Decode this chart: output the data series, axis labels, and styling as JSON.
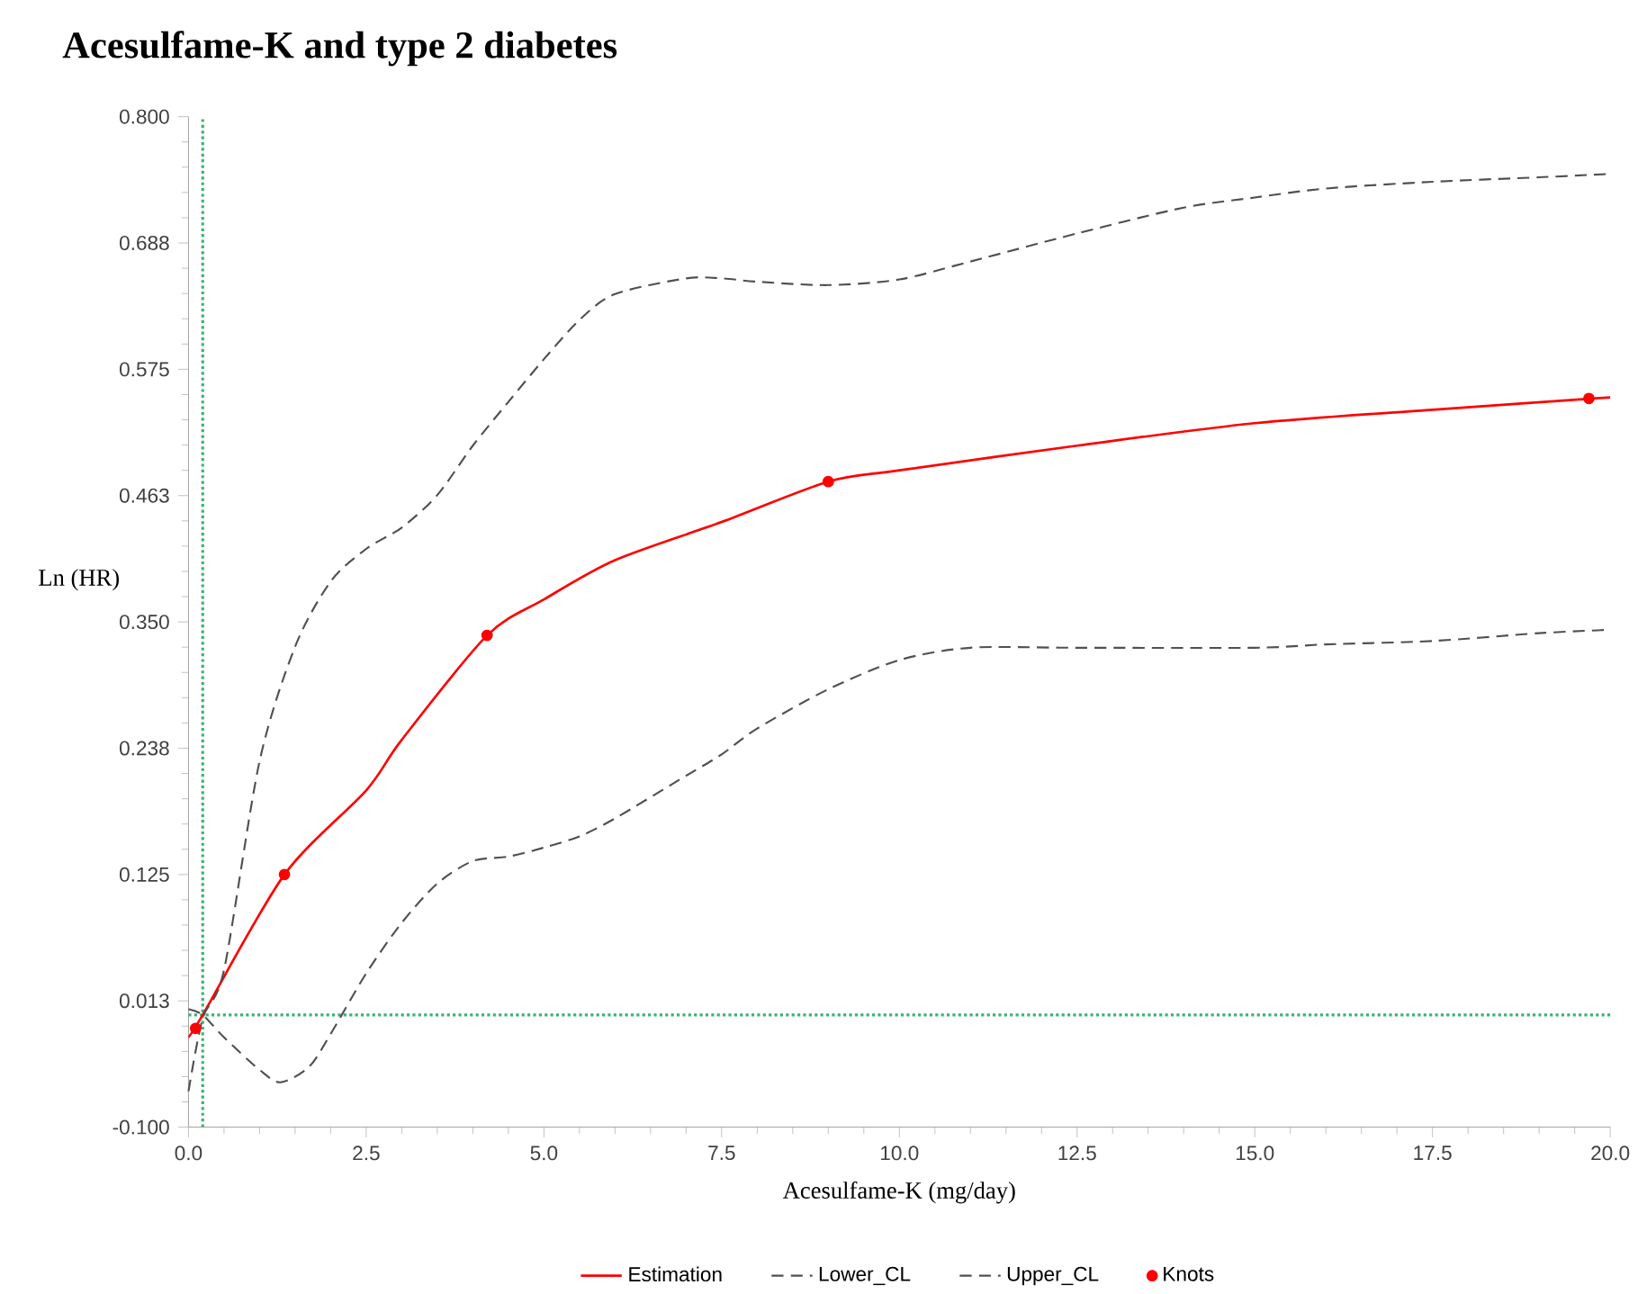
{
  "chart_data": {
    "type": "line",
    "title": "Acesulfame-K and type 2 diabetes",
    "xlabel": "Acesulfame-K (mg/day)",
    "ylabel": "Ln (HR)",
    "xlim": [
      0,
      20
    ],
    "ylim": [
      -0.1,
      0.8
    ],
    "xticks": [
      {
        "value": 0,
        "label": "0.0"
      },
      {
        "value": 2.5,
        "label": "2.5"
      },
      {
        "value": 5,
        "label": "5.0"
      },
      {
        "value": 7.5,
        "label": "7.5"
      },
      {
        "value": 10,
        "label": "10.0"
      },
      {
        "value": 12.5,
        "label": "12.5"
      },
      {
        "value": 15,
        "label": "15.0"
      },
      {
        "value": 17.5,
        "label": "17.5"
      },
      {
        "value": 20,
        "label": "20.0"
      }
    ],
    "yticks": [
      {
        "value": -0.1,
        "label": "-0.100"
      },
      {
        "value": 0.0125,
        "label": "0.013"
      },
      {
        "value": 0.125,
        "label": "0.125"
      },
      {
        "value": 0.2375,
        "label": "0.238"
      },
      {
        "value": 0.35,
        "label": "0.350"
      },
      {
        "value": 0.4625,
        "label": "0.463"
      },
      {
        "value": 0.575,
        "label": "0.575"
      },
      {
        "value": 0.6875,
        "label": "0.688"
      },
      {
        "value": 0.8,
        "label": "0.800"
      }
    ],
    "legend": "bottom",
    "grid": false,
    "series": [
      {
        "name": "Estimation",
        "color": "#ff0000",
        "line_style": "solid",
        "marker": "none",
        "x": [
          0,
          0.2,
          1.35,
          2.5,
          3.0,
          4.2,
          5.0,
          6.0,
          7.5,
          9.0,
          10.0,
          12.5,
          15.0,
          17.5,
          20.0
        ],
        "values": [
          -0.02,
          0.0,
          0.125,
          0.2,
          0.245,
          0.338,
          0.37,
          0.405,
          0.439,
          0.475,
          0.485,
          0.507,
          0.527,
          0.539,
          0.55
        ]
      },
      {
        "name": "Lower_CL",
        "color": "#505050",
        "line_style": "dashed",
        "marker": "none",
        "x": [
          0,
          0.2,
          0.5,
          1.0,
          1.3,
          1.7,
          2.0,
          2.5,
          3.0,
          3.5,
          4.0,
          4.5,
          5.0,
          5.5,
          6.0,
          7.0,
          7.5,
          8.0,
          9.0,
          10.0,
          11.0,
          12.5,
          15.0,
          16.0,
          17.5,
          19.0,
          20.0
        ],
        "values": [
          0.005,
          0.0,
          -0.02,
          -0.049,
          -0.06,
          -0.046,
          -0.017,
          0.037,
          0.082,
          0.117,
          0.137,
          0.141,
          0.149,
          0.159,
          0.175,
          0.213,
          0.232,
          0.255,
          0.29,
          0.316,
          0.327,
          0.327,
          0.327,
          0.33,
          0.333,
          0.34,
          0.343
        ]
      },
      {
        "name": "Upper_CL",
        "color": "#505050",
        "line_style": "dashed",
        "marker": "none",
        "x": [
          0,
          0.2,
          0.5,
          1.0,
          1.5,
          2.0,
          2.5,
          3.0,
          3.5,
          4.0,
          4.5,
          5.0,
          5.5,
          6.0,
          7.0,
          7.5,
          8.0,
          9.0,
          10.0,
          11.0,
          12.5,
          14.0,
          15.0,
          16.0,
          17.5,
          19.0,
          20.0
        ],
        "values": [
          -0.068,
          -0.003,
          0.04,
          0.226,
          0.328,
          0.386,
          0.415,
          0.434,
          0.463,
          0.507,
          0.546,
          0.584,
          0.619,
          0.642,
          0.656,
          0.656,
          0.653,
          0.65,
          0.655,
          0.671,
          0.696,
          0.719,
          0.728,
          0.736,
          0.742,
          0.746,
          0.749
        ]
      },
      {
        "name": "Knots",
        "type": "scatter",
        "color": "#ff0000",
        "marker": "circle",
        "x": [
          0.1,
          1.35,
          4.2,
          9.0,
          19.7
        ],
        "values": [
          -0.012,
          0.125,
          0.338,
          0.475,
          0.549
        ]
      }
    ],
    "ref_lines": [
      {
        "axis": "x",
        "value": 0.2,
        "color": "#3cb371",
        "line_style": "dotted"
      },
      {
        "axis": "y",
        "value": 0,
        "color": "#3cb371",
        "line_style": "dotted"
      }
    ]
  }
}
